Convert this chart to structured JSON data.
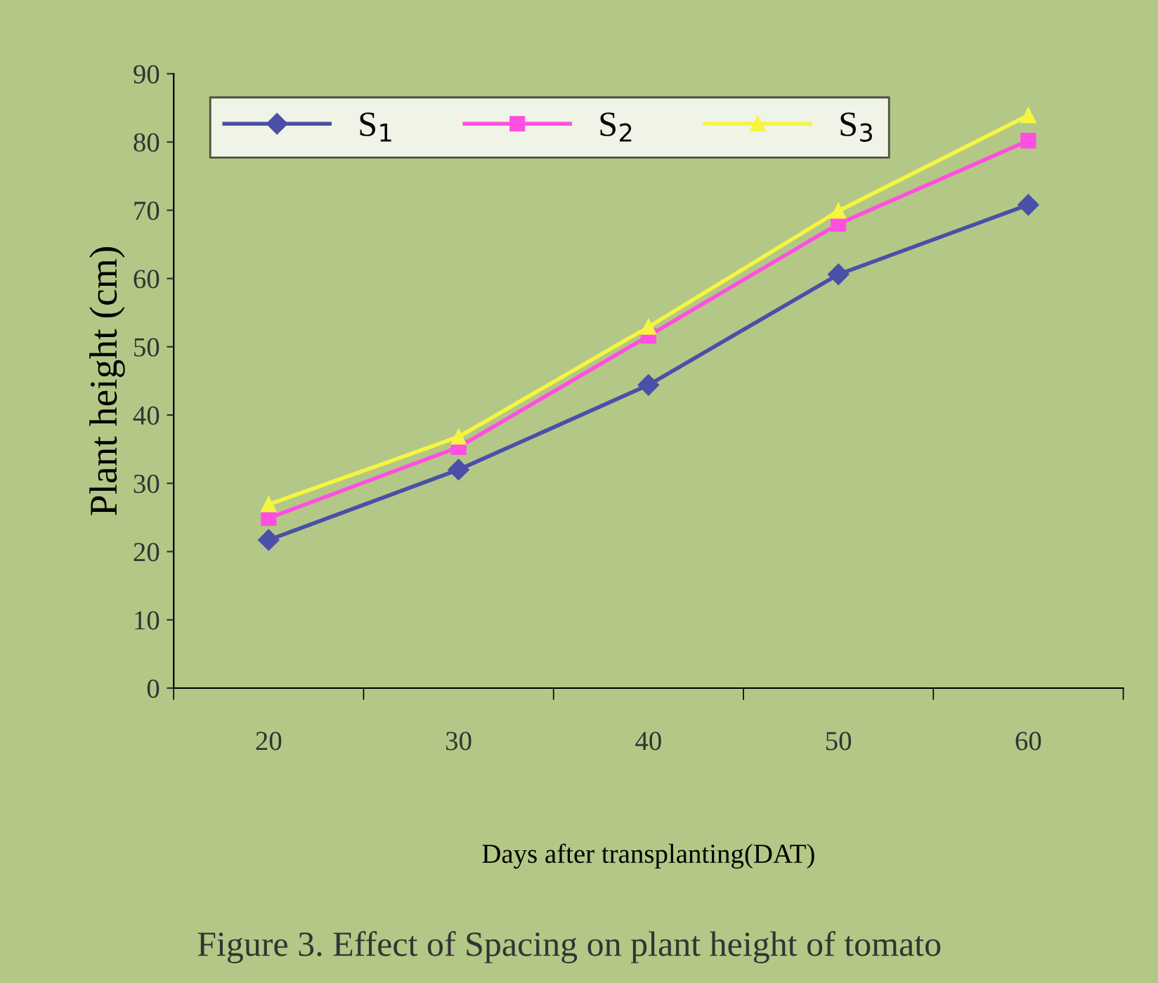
{
  "chart_data": {
    "type": "line",
    "categories": [
      "20",
      "30",
      "40",
      "50",
      "60"
    ],
    "xlabel": "Days after transplanting(DAT)",
    "ylabel": "Plant height (cm)",
    "ylim": [
      0,
      90
    ],
    "yticks": [
      0,
      10,
      20,
      30,
      40,
      50,
      60,
      70,
      80,
      90
    ],
    "grid": false,
    "legend": "top left",
    "line_style": "solid",
    "annotations": [
      "Figure 3. Effect of Spacing on plant height of tomato"
    ],
    "series": [
      {
        "name": "S$_{1}$",
        "color": "#4a4fa8",
        "marker": "diamond",
        "values": [
          21.7,
          32,
          44.4,
          60.6,
          70.8
        ]
      },
      {
        "name": "S$_{2}$",
        "color": "#ff4fe0",
        "marker": "square",
        "values": [
          24.9,
          35.3,
          51.6,
          68,
          80.2
        ]
      },
      {
        "name": "S$_{3}$",
        "color": "#f5f542",
        "marker": "triangle",
        "values": [
          26.9,
          36.8,
          52.9,
          69.9,
          83.9
        ]
      }
    ]
  }
}
